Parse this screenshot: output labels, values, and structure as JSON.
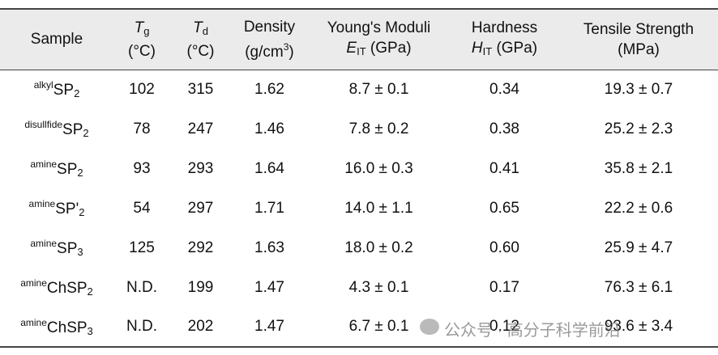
{
  "table": {
    "header": [
      [
        [
          {
            "t": "Sample"
          }
        ]
      ],
      [
        [
          {
            "t": "T",
            "s": "i"
          },
          {
            "t": "g",
            "s": "sub"
          }
        ],
        [
          {
            "t": "(°C)"
          }
        ]
      ],
      [
        [
          {
            "t": "T",
            "s": "i"
          },
          {
            "t": "d",
            "s": "sub"
          }
        ],
        [
          {
            "t": "(°C)"
          }
        ]
      ],
      [
        [
          {
            "t": "Density"
          }
        ],
        [
          {
            "t": "(g/cm"
          },
          {
            "t": "3",
            "s": "sup"
          },
          {
            "t": ")"
          }
        ]
      ],
      [
        [
          {
            "t": "Young's Moduli"
          }
        ],
        [
          {
            "t": "E",
            "s": "i"
          },
          {
            "t": "IT",
            "s": "sub"
          },
          {
            "t": " (GPa)"
          }
        ]
      ],
      [
        [
          {
            "t": "Hardness"
          }
        ],
        [
          {
            "t": "H",
            "s": "i"
          },
          {
            "t": "IT",
            "s": "sub"
          },
          {
            "t": " (GPa)"
          }
        ]
      ],
      [
        [
          {
            "t": "Tensile Strength"
          }
        ],
        [
          {
            "t": "(MPa)"
          }
        ]
      ]
    ],
    "rows": [
      [
        [
          {
            "t": "alkyl",
            "s": "sup"
          },
          {
            "t": "SP"
          },
          {
            "t": "2",
            "s": "sub"
          }
        ],
        "102",
        "315",
        "1.62",
        "8.7 ± 0.1",
        "0.34",
        "19.3 ± 0.7"
      ],
      [
        [
          {
            "t": "disullfide",
            "s": "sup"
          },
          {
            "t": "SP"
          },
          {
            "t": "2",
            "s": "sub"
          }
        ],
        "78",
        "247",
        "1.46",
        "7.8 ± 0.2",
        "0.38",
        "25.2 ± 2.3"
      ],
      [
        [
          {
            "t": "amine",
            "s": "sup"
          },
          {
            "t": "SP"
          },
          {
            "t": "2",
            "s": "sub"
          }
        ],
        "93",
        "293",
        "1.64",
        "16.0 ± 0.3",
        "0.41",
        "35.8 ± 2.1"
      ],
      [
        [
          {
            "t": "amine",
            "s": "sup"
          },
          {
            "t": "SP'"
          },
          {
            "t": "2",
            "s": "sub"
          }
        ],
        "54",
        "297",
        "1.71",
        "14.0 ± 1.1",
        "0.65",
        "22.2 ± 0.6"
      ],
      [
        [
          {
            "t": "amine",
            "s": "sup"
          },
          {
            "t": "SP"
          },
          {
            "t": "3",
            "s": "sub"
          }
        ],
        "125",
        "292",
        "1.63",
        "18.0 ± 0.2",
        "0.60",
        "25.9 ± 4.7"
      ],
      [
        [
          {
            "t": "amine",
            "s": "sup"
          },
          {
            "t": "ChSP"
          },
          {
            "t": "2",
            "s": "sub"
          }
        ],
        "N.D.",
        "199",
        "1.47",
        "4.3 ± 0.1",
        "0.17",
        "76.3 ± 6.1"
      ],
      [
        [
          {
            "t": "amine",
            "s": "sup"
          },
          {
            "t": "ChSP"
          },
          {
            "t": "3",
            "s": "sub"
          }
        ],
        "N.D.",
        "202",
        "1.47",
        "6.7 ± 0.1",
        "0.12",
        "93.6 ± 3.4"
      ]
    ]
  },
  "watermark": "公众号 · 高分子科学前沿"
}
